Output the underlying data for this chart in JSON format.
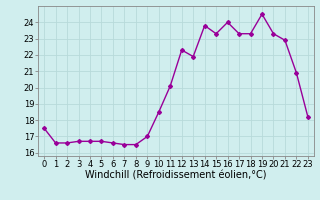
{
  "x": [
    0,
    1,
    2,
    3,
    4,
    5,
    6,
    7,
    8,
    9,
    10,
    11,
    12,
    13,
    14,
    15,
    16,
    17,
    18,
    19,
    20,
    21,
    22,
    23
  ],
  "y": [
    17.5,
    16.6,
    16.6,
    16.7,
    16.7,
    16.7,
    16.6,
    16.5,
    16.5,
    17.0,
    18.5,
    20.1,
    22.3,
    21.9,
    23.8,
    23.3,
    24.0,
    23.3,
    23.3,
    24.5,
    23.3,
    22.9,
    20.9,
    18.2
  ],
  "line_color": "#990099",
  "marker": "D",
  "marker_size": 2,
  "bg_color": "#d0eeee",
  "grid_color": "#b8dada",
  "xlabel": "Windchill (Refroidissement éolien,°C)",
  "xlabel_fontsize": 7,
  "yticks": [
    16,
    17,
    18,
    19,
    20,
    21,
    22,
    23,
    24
  ],
  "xticks": [
    0,
    1,
    2,
    3,
    4,
    5,
    6,
    7,
    8,
    9,
    10,
    11,
    12,
    13,
    14,
    15,
    16,
    17,
    18,
    19,
    20,
    21,
    22,
    23
  ],
  "ylim": [
    15.8,
    25.0
  ],
  "xlim": [
    -0.5,
    23.5
  ],
  "tick_fontsize": 6,
  "linewidth": 1.0
}
